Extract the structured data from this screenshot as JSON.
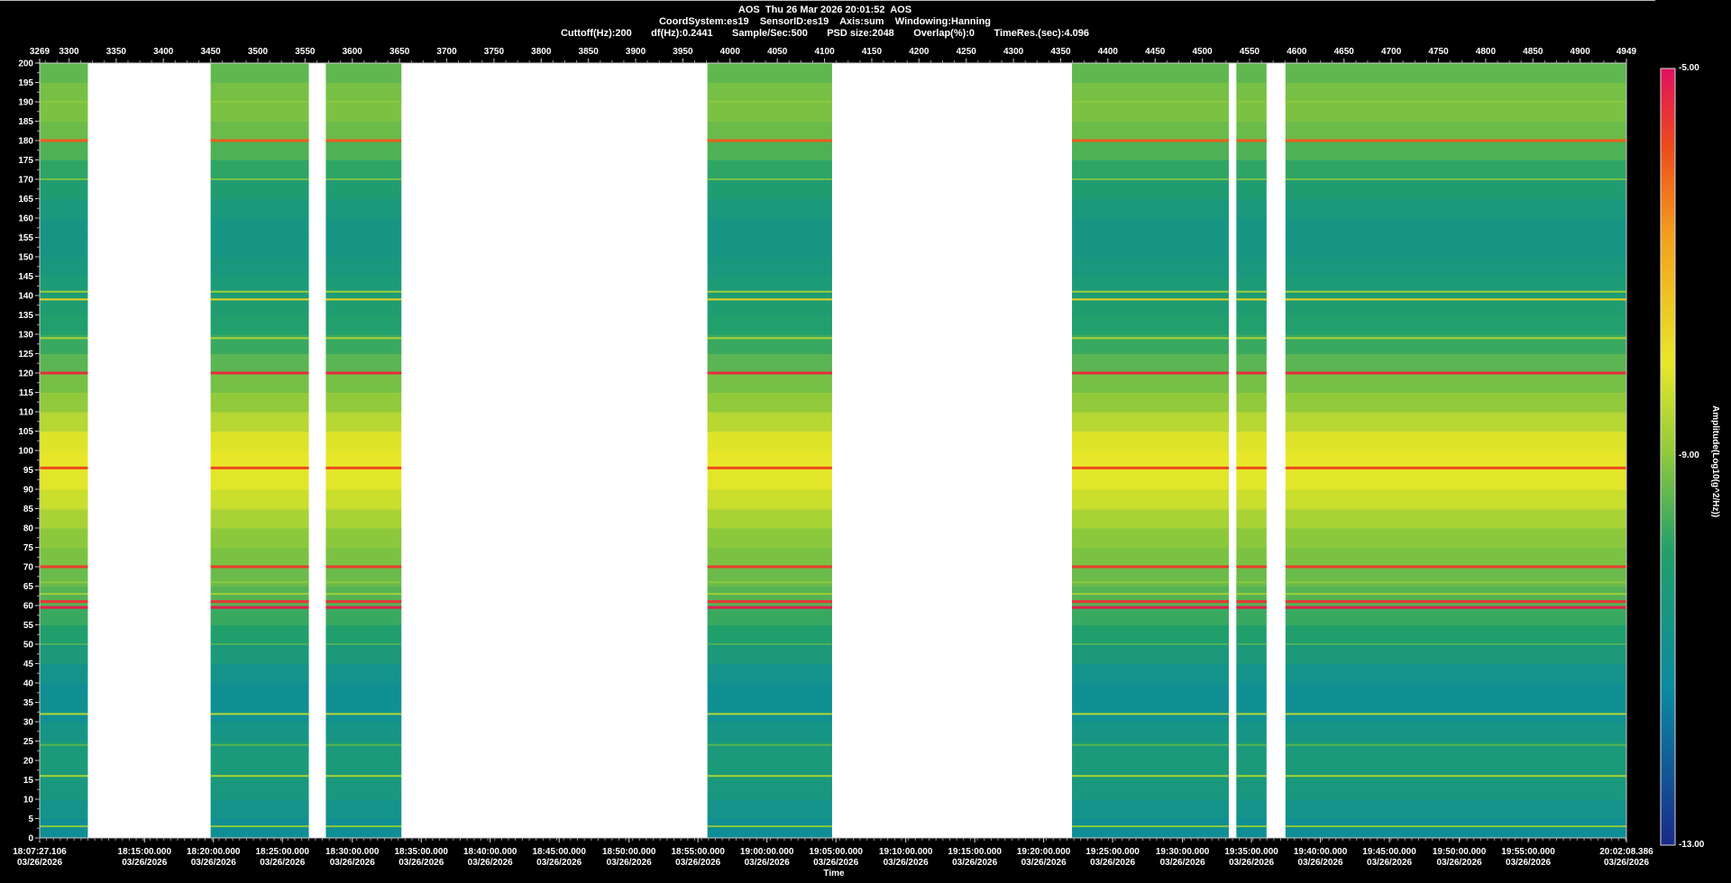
{
  "header": {
    "line1": "AOS  Thu 26 Mar 2026 20:01:52  AOS",
    "line2": "CoordSystem:es19    SensorID:es19    Axis:sum    Windowing:Hanning",
    "line3": "Cuttoff(Hz):200       df(Hz):0.2441       Sample/Sec:500       PSD size:2048       Overlap(%):0       TimeRes.(sec):4.096"
  },
  "chart_data": {
    "type": "heatmap",
    "title": "",
    "xlabel": "Time",
    "ylabel": "",
    "colorbar_label": "Amplitude(Log10(g^2/Hz))",
    "colorbar_ticks": [
      "-5.00",
      "-9.00",
      "-13.00"
    ],
    "colorbar_range": [
      -13,
      -5
    ],
    "ylim": [
      0,
      200
    ],
    "y_ticks": [
      0,
      5,
      10,
      15,
      20,
      25,
      30,
      35,
      40,
      45,
      50,
      55,
      60,
      65,
      70,
      75,
      80,
      85,
      90,
      95,
      100,
      105,
      110,
      115,
      120,
      125,
      130,
      135,
      140,
      145,
      150,
      155,
      160,
      165,
      170,
      175,
      180,
      185,
      190,
      195,
      200
    ],
    "frame_range": [
      3269,
      4949
    ],
    "top_ticks": [
      3269,
      3300,
      3350,
      3400,
      3450,
      3500,
      3550,
      3600,
      3650,
      3700,
      3750,
      3800,
      3850,
      3900,
      3950,
      4000,
      4050,
      4100,
      4150,
      4200,
      4250,
      4300,
      4350,
      4400,
      4450,
      4500,
      4550,
      4600,
      4650,
      4700,
      4750,
      4800,
      4850,
      4900,
      4949
    ],
    "time_ticks": [
      {
        "time": "18:07:27.106",
        "date": "03/26/2026",
        "frame": 3269
      },
      {
        "time": "18:15:00.000",
        "date": "03/26/2026",
        "frame": 3380
      },
      {
        "time": "18:20:00.000",
        "date": "03/26/2026",
        "frame": 3453
      },
      {
        "time": "18:25:00.000",
        "date": "03/26/2026",
        "frame": 3526
      },
      {
        "time": "18:30:00.000",
        "date": "03/26/2026",
        "frame": 3600
      },
      {
        "time": "18:35:00.000",
        "date": "03/26/2026",
        "frame": 3673
      },
      {
        "time": "18:40:00.000",
        "date": "03/26/2026",
        "frame": 3746
      },
      {
        "time": "18:45:00.000",
        "date": "03/26/2026",
        "frame": 3819
      },
      {
        "time": "18:50:00.000",
        "date": "03/26/2026",
        "frame": 3893
      },
      {
        "time": "18:55:00.000",
        "date": "03/26/2026",
        "frame": 3966
      },
      {
        "time": "19:00:00.000",
        "date": "03/26/2026",
        "frame": 4039
      },
      {
        "time": "19:05:00.000",
        "date": "03/26/2026",
        "frame": 4112
      },
      {
        "time": "19:10:00.000",
        "date": "03/26/2026",
        "frame": 4186
      },
      {
        "time": "19:15:00.000",
        "date": "03/26/2026",
        "frame": 4259
      },
      {
        "time": "19:20:00.000",
        "date": "03/26/2026",
        "frame": 4332
      },
      {
        "time": "19:25:00.000",
        "date": "03/26/2026",
        "frame": 4405
      },
      {
        "time": "19:30:00.000",
        "date": "03/26/2026",
        "frame": 4479
      },
      {
        "time": "19:35:00.000",
        "date": "03/26/2026",
        "frame": 4552
      },
      {
        "time": "19:40:00.000",
        "date": "03/26/2026",
        "frame": 4625
      },
      {
        "time": "19:45:00.000",
        "date": "03/26/2026",
        "frame": 4698
      },
      {
        "time": "19:50:00.000",
        "date": "03/26/2026",
        "frame": 4772
      },
      {
        "time": "19:55:00.000",
        "date": "03/26/2026",
        "frame": 4845
      },
      {
        "time": "20:02:08.386",
        "date": "03/26/2026",
        "frame": 4949
      }
    ],
    "data_segments": [
      [
        3269,
        3320
      ],
      [
        3450,
        3554
      ],
      [
        3572,
        3652
      ],
      [
        3976,
        4108
      ],
      [
        4362,
        4528
      ],
      [
        4536,
        4568
      ],
      [
        4588,
        4949
      ]
    ],
    "gaps": [
      [
        3320,
        3450
      ],
      [
        3554,
        3572
      ],
      [
        3652,
        3976
      ],
      [
        4108,
        4362
      ],
      [
        4528,
        4536
      ],
      [
        4568,
        4574
      ],
      [
        4577,
        4582
      ],
      [
        4584,
        4588
      ]
    ],
    "background_levels": [
      {
        "hz": 0,
        "level": -11.2
      },
      {
        "hz": 5,
        "level": -11.0
      },
      {
        "hz": 10,
        "level": -10.6
      },
      {
        "hz": 15,
        "level": -10.4
      },
      {
        "hz": 20,
        "level": -10.3
      },
      {
        "hz": 25,
        "level": -10.5
      },
      {
        "hz": 30,
        "level": -10.9
      },
      {
        "hz": 35,
        "level": -11.1
      },
      {
        "hz": 40,
        "level": -11.0
      },
      {
        "hz": 45,
        "level": -10.6
      },
      {
        "hz": 50,
        "level": -10.2
      },
      {
        "hz": 55,
        "level": -9.9
      },
      {
        "hz": 60,
        "level": -9.6
      },
      {
        "hz": 65,
        "level": -9.4
      },
      {
        "hz": 70,
        "level": -9.2
      },
      {
        "hz": 75,
        "level": -9.1
      },
      {
        "hz": 80,
        "level": -8.9
      },
      {
        "hz": 85,
        "level": -8.5
      },
      {
        "hz": 90,
        "level": -8.2
      },
      {
        "hz": 95,
        "level": -8.0
      },
      {
        "hz": 100,
        "level": -8.0
      },
      {
        "hz": 105,
        "level": -8.3
      },
      {
        "hz": 110,
        "level": -8.8
      },
      {
        "hz": 115,
        "level": -9.1
      },
      {
        "hz": 120,
        "level": -9.3
      },
      {
        "hz": 125,
        "level": -9.6
      },
      {
        "hz": 130,
        "level": -9.9
      },
      {
        "hz": 135,
        "level": -10.1
      },
      {
        "hz": 140,
        "level": -10.2
      },
      {
        "hz": 145,
        "level": -10.4
      },
      {
        "hz": 150,
        "level": -10.6
      },
      {
        "hz": 155,
        "level": -10.7
      },
      {
        "hz": 160,
        "level": -10.6
      },
      {
        "hz": 165,
        "level": -10.3
      },
      {
        "hz": 170,
        "level": -10.0
      },
      {
        "hz": 175,
        "level": -9.7
      },
      {
        "hz": 180,
        "level": -9.4
      },
      {
        "hz": 185,
        "level": -9.2
      },
      {
        "hz": 190,
        "level": -9.1
      },
      {
        "hz": 195,
        "level": -9.3
      },
      {
        "hz": 200,
        "level": -9.5
      }
    ],
    "lines": [
      {
        "hz": 3,
        "level": -9.0
      },
      {
        "hz": 16,
        "level": -8.7
      },
      {
        "hz": 24,
        "level": -9.5
      },
      {
        "hz": 32,
        "level": -8.6
      },
      {
        "hz": 50,
        "level": -9.6
      },
      {
        "hz": 59.5,
        "level": -5.2
      },
      {
        "hz": 61,
        "level": -5.5
      },
      {
        "hz": 63,
        "level": -8.8
      },
      {
        "hz": 66,
        "level": -9.0
      },
      {
        "hz": 70,
        "level": -5.6
      },
      {
        "hz": 85,
        "level": -8.4
      },
      {
        "hz": 95.5,
        "level": -5.8
      },
      {
        "hz": 120,
        "level": -5.4
      },
      {
        "hz": 129,
        "level": -8.7
      },
      {
        "hz": 139,
        "level": -7.6
      },
      {
        "hz": 141,
        "level": -8.8
      },
      {
        "hz": 170,
        "level": -9.2
      },
      {
        "hz": 180,
        "level": -6.0
      },
      {
        "hz": 190,
        "level": -9.0
      }
    ]
  }
}
